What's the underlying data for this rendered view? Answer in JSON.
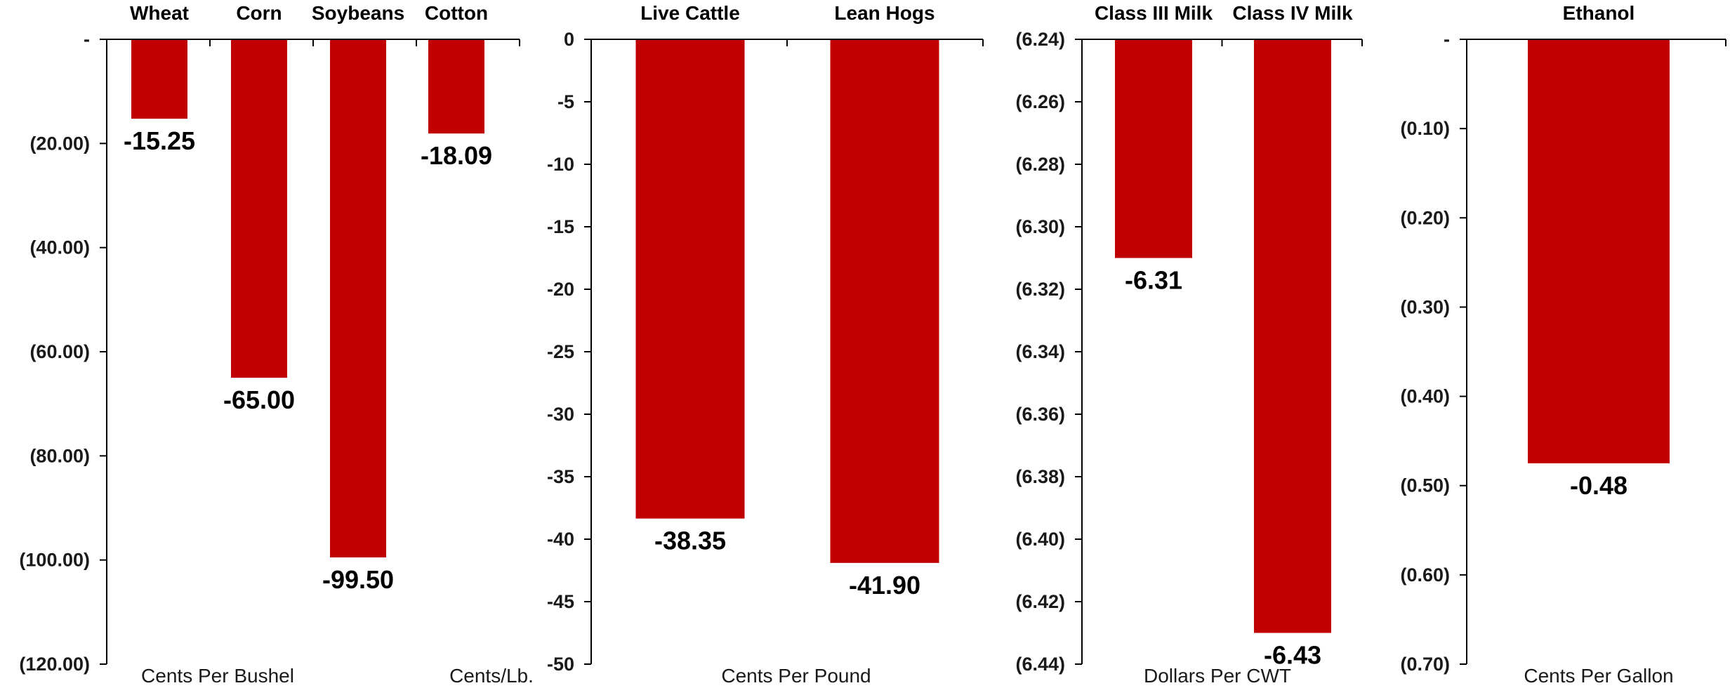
{
  "colors": {
    "bar": "#c00000",
    "axis": "#000000",
    "text": "#000000"
  },
  "chart_data": [
    {
      "type": "bar",
      "title": "",
      "categories": [
        "Wheat",
        "Corn",
        "Soybeans",
        "Cotton"
      ],
      "values": [
        -15.25,
        -65.0,
        -99.5,
        -18.09
      ],
      "value_labels": [
        "-15.25",
        "-65.00",
        "-99.50",
        "-18.09"
      ],
      "ylim": [
        -120,
        0
      ],
      "yticks": [
        0,
        -20,
        -40,
        -60,
        -80,
        -100,
        -120
      ],
      "ytick_labels": [
        "-",
        "(20.00)",
        "(40.00)",
        "(60.00)",
        "(80.00)",
        "(100.00)",
        "(120.00)"
      ],
      "xlabels": [
        "Cents Per Bushel",
        "Cents/Lb."
      ],
      "grid": false,
      "legend": "none"
    },
    {
      "type": "bar",
      "title": "",
      "categories": [
        "Live Cattle",
        "Lean Hogs"
      ],
      "values": [
        -38.35,
        -41.9
      ],
      "value_labels": [
        "-38.35",
        "-41.90"
      ],
      "ylim": [
        -50,
        0
      ],
      "yticks": [
        0,
        -5,
        -10,
        -15,
        -20,
        -25,
        -30,
        -35,
        -40,
        -45,
        -50
      ],
      "ytick_labels": [
        "0",
        "-5",
        "-10",
        "-15",
        "-20",
        "-25",
        "-30",
        "-35",
        "-40",
        "-45",
        "-50"
      ],
      "xlabels": [
        "Cents Per Pound"
      ],
      "grid": false,
      "legend": "none"
    },
    {
      "type": "bar",
      "title": "",
      "categories": [
        "Class III Milk",
        "Class IV Milk"
      ],
      "values": [
        -6.31,
        -6.43
      ],
      "value_labels": [
        "-6.31",
        "-6.43"
      ],
      "ylim": [
        -6.44,
        -6.24
      ],
      "yticks": [
        -6.24,
        -6.26,
        -6.28,
        -6.3,
        -6.32,
        -6.34,
        -6.36,
        -6.38,
        -6.4,
        -6.42,
        -6.44
      ],
      "ytick_labels": [
        "(6.24)",
        "(6.26)",
        "(6.28)",
        "(6.30)",
        "(6.32)",
        "(6.34)",
        "(6.36)",
        "(6.38)",
        "(6.40)",
        "(6.42)",
        "(6.44)"
      ],
      "xlabels": [
        "Dollars Per CWT"
      ],
      "grid": false,
      "legend": "none"
    },
    {
      "type": "bar",
      "title": "",
      "categories": [
        "Ethanol"
      ],
      "values": [
        -0.475
      ],
      "value_labels": [
        "-0.48"
      ],
      "ylim": [
        -0.7,
        0
      ],
      "yticks": [
        0,
        -0.1,
        -0.2,
        -0.3,
        -0.4,
        -0.5,
        -0.6,
        -0.7
      ],
      "ytick_labels": [
        "-",
        "(0.10)",
        "(0.20)",
        "(0.30)",
        "(0.40)",
        "(0.50)",
        "(0.60)",
        "(0.70)"
      ],
      "xlabels": [
        "Cents Per Gallon"
      ],
      "grid": false,
      "legend": "none"
    }
  ]
}
